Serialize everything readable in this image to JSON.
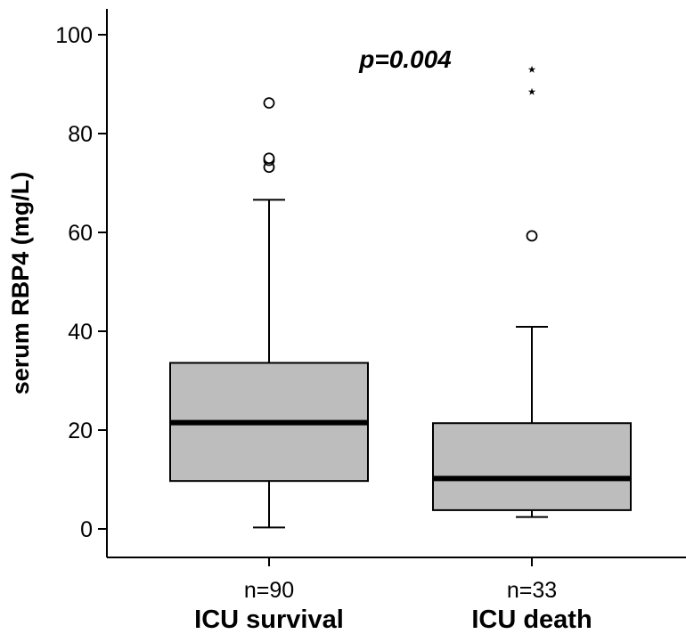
{
  "chart_data": {
    "type": "box",
    "ylabel": "serum RBP4 (mg/L)",
    "ylim": [
      -5,
      105
    ],
    "yticks": [
      0,
      20,
      40,
      60,
      80,
      100
    ],
    "annotation": "p=0.004",
    "grid": false,
    "box_color": "#bdbdbd",
    "groups": [
      {
        "name": "ICU survival",
        "n_label": "n=90",
        "whisker_low": 0.3,
        "q1": 9.7,
        "median": 21.5,
        "q3": 33.6,
        "whisker_high": 66.6,
        "outliers_circle": [
          73.2,
          74.6,
          75.0,
          86.2
        ],
        "outliers_star": []
      },
      {
        "name": "ICU death",
        "n_label": "n=33",
        "whisker_low": 2.4,
        "q1": 3.8,
        "median": 10.2,
        "q3": 21.4,
        "whisker_high": 40.9,
        "outliers_circle": [
          59.3
        ],
        "outliers_star": [
          89.0,
          93.5
        ]
      }
    ]
  }
}
